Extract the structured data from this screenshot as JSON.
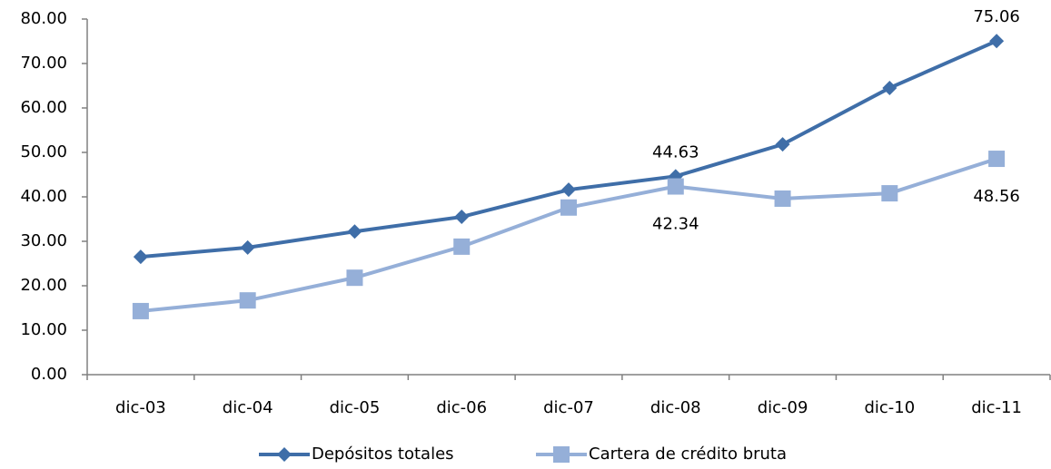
{
  "chart_data": {
    "type": "line",
    "categories": [
      "dic-03",
      "dic-04",
      "dic-05",
      "dic-06",
      "dic-07",
      "dic-08",
      "dic-09",
      "dic-10",
      "dic-11"
    ],
    "series": [
      {
        "name": "Depósitos totales",
        "color": "#3f6ea8",
        "marker": "diamond",
        "values": [
          26.5,
          28.6,
          32.2,
          35.5,
          41.6,
          44.63,
          51.8,
          64.5,
          75.06
        ],
        "value_labels": [
          null,
          null,
          null,
          null,
          null,
          "44.63",
          null,
          null,
          "75.06"
        ]
      },
      {
        "name": "Cartera de crédito bruta",
        "color": "#95afd8",
        "marker": "square",
        "values": [
          14.3,
          16.7,
          21.8,
          28.8,
          37.6,
          42.34,
          39.6,
          40.8,
          48.56
        ],
        "value_labels": [
          null,
          null,
          null,
          null,
          null,
          "42.34",
          null,
          null,
          "48.56"
        ]
      }
    ],
    "ylim": [
      0,
      80
    ],
    "yticks": [
      {
        "value": 0,
        "label": "0.00"
      },
      {
        "value": 10,
        "label": "10.00"
      },
      {
        "value": 20,
        "label": "20.00"
      },
      {
        "value": 30,
        "label": "30.00"
      },
      {
        "value": 40,
        "label": "40.00"
      },
      {
        "value": 50,
        "label": "50.00"
      },
      {
        "value": 60,
        "label": "60.00"
      },
      {
        "value": 70,
        "label": "70.00"
      },
      {
        "value": 80,
        "label": "80.00"
      }
    ],
    "grid": false,
    "legend": "bottom"
  }
}
